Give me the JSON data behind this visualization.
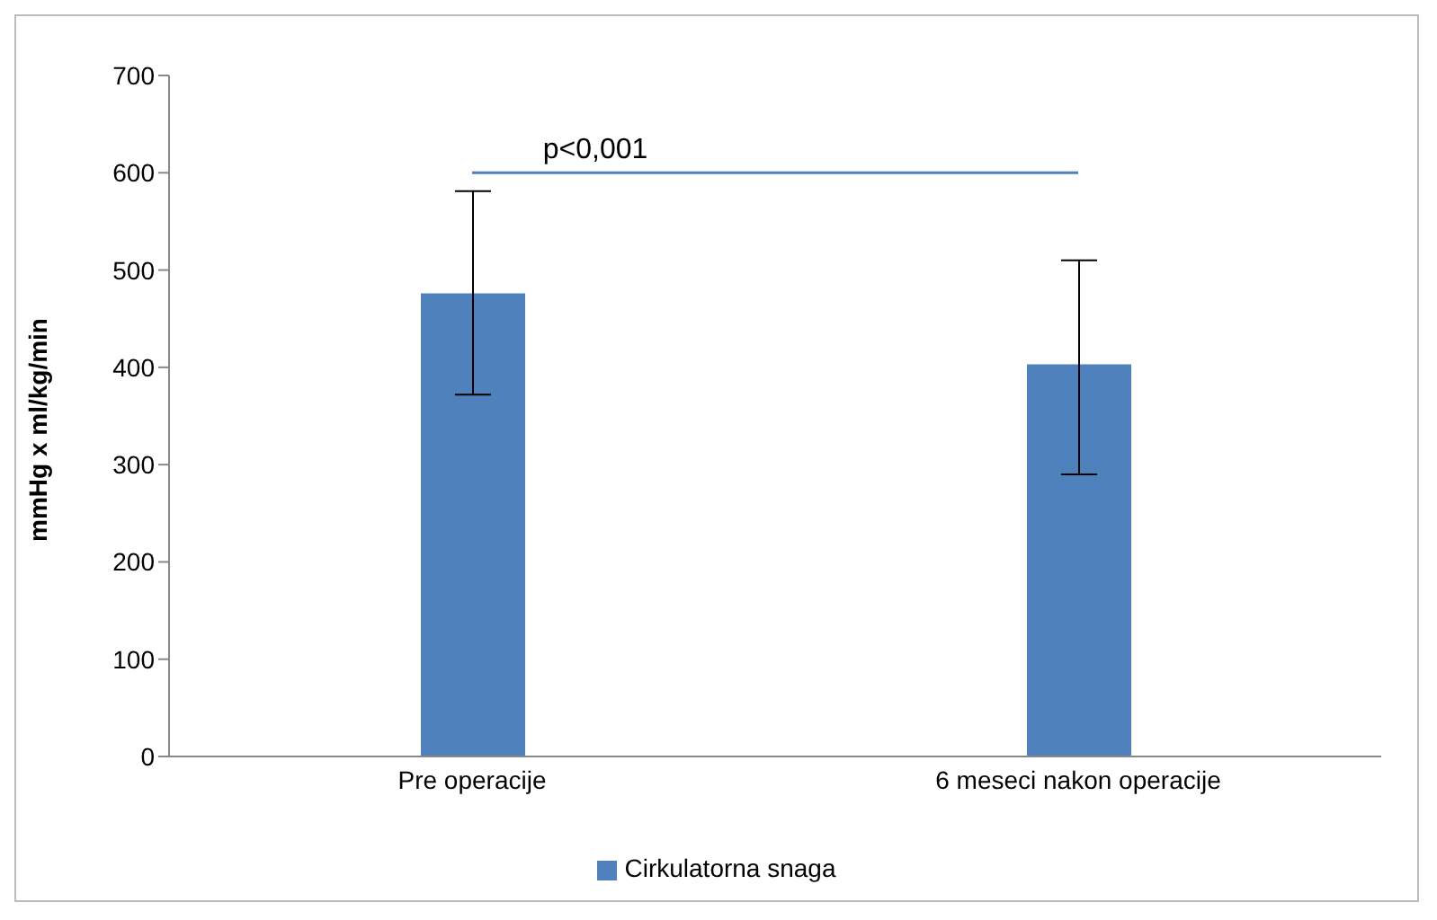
{
  "chart_data": {
    "type": "bar",
    "ylabel": "mmHg x ml/kg/min",
    "categories": [
      "Pre operacije",
      "6 meseci nakon operacije"
    ],
    "series": [
      {
        "name": "Cirkulatorna snaga",
        "color": "#4f81bd",
        "values": [
          476,
          403
        ],
        "errors": [
          [
            372,
            581
          ],
          [
            290,
            510
          ]
        ]
      }
    ],
    "ylim": [
      0,
      700
    ],
    "yticks": [
      0,
      100,
      200,
      300,
      400,
      500,
      600,
      700
    ],
    "grid": false,
    "legend": "bottom",
    "ref_lines": [
      {
        "axis": "y",
        "value": 600,
        "label": "p<0,001",
        "color": "#4f81bd"
      }
    ]
  }
}
